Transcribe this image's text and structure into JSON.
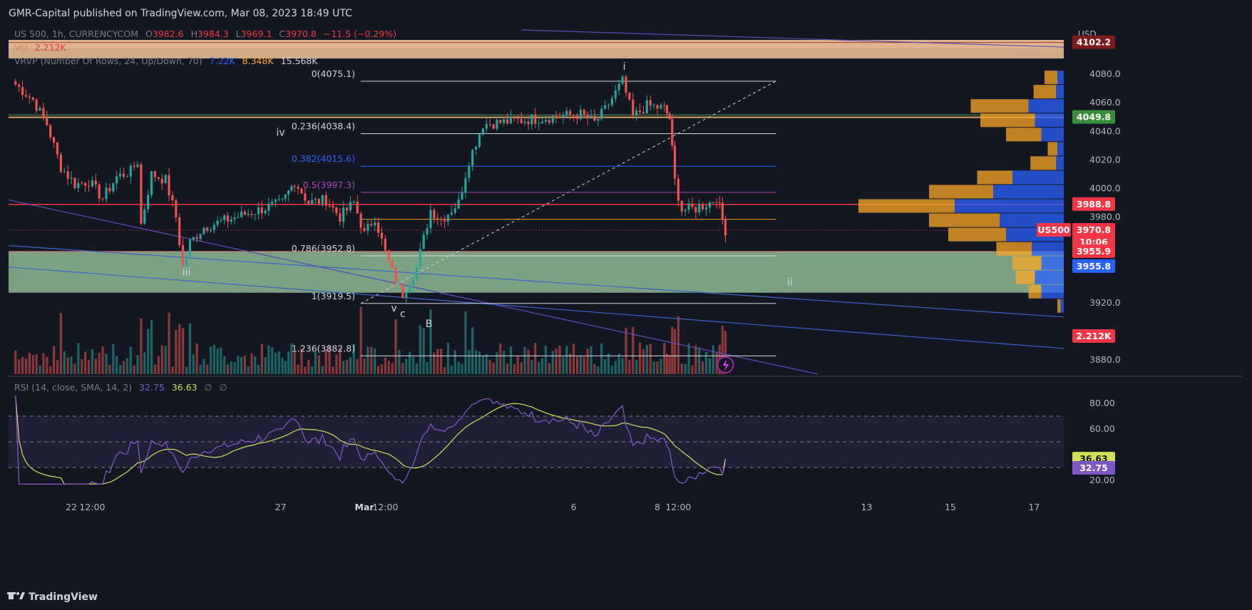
{
  "header": {
    "published": "GMR-Capital published on TradingView.com, Mar 08, 2023 18:49 UTC"
  },
  "footer": {
    "brand": "TradingView"
  },
  "legend": {
    "symbol": "US 500, 1h, CURRENCYCOM",
    "o_label": "O",
    "o": "3982.6",
    "h_label": "H",
    "h": "3984.3",
    "l_label": "L",
    "l": "3969.1",
    "c_label": "C",
    "c": "3970.8",
    "change": "−11.5 (−0.29%)",
    "vol_label": "Vol",
    "vol": "2.212K",
    "vrvp_label": "VRVP (Number Of Rows, 24, Up/Down, 70)",
    "vrvp_up": "7.22K",
    "vrvp_down": "8.348K",
    "vrvp_total": "15.568K",
    "rsi_label": "RSI (14, close, SMA, 14, 2)",
    "rsi_value": "32.75",
    "rsi_sma": "36.63",
    "rsi_extra1": "∅",
    "rsi_extra2": "∅"
  },
  "axis": {
    "currency": "USD",
    "price_ticks": [
      "4080.0",
      "4060.0",
      "4040.0",
      "4020.0",
      "4000.0",
      "3980.0",
      "3920.0",
      "3880.0"
    ],
    "rsi_ticks": [
      "80.00",
      "60.00",
      "20.00"
    ],
    "time_ticks": [
      "22",
      "12:00",
      "27",
      "Mar",
      "12:00",
      "6",
      "8",
      "12:00",
      "13",
      "15",
      "17"
    ]
  },
  "price_labels": {
    "top_zone": "4102.2",
    "green": "4049.8",
    "red_line": "3988.8",
    "symbol_tag": "US500",
    "last": "3970.8",
    "countdown": "10:06",
    "zone_red": "3955.9",
    "zone_blue": "3955.8",
    "volume": "2.212K",
    "rsi_sma": "36.63",
    "rsi": "32.75"
  },
  "fib": [
    {
      "label": "0(4075.1)",
      "price": 4075.1,
      "color": "#d1d4dc"
    },
    {
      "label": "0.236(4038.4)",
      "price": 4038.4,
      "color": "#d1d4dc"
    },
    {
      "label": "0.382(4015.6)",
      "price": 4015.6,
      "color": "#2962ff"
    },
    {
      "label": "0.5(3997.3)",
      "price": 3997.3,
      "color": "#ab47bc"
    },
    {
      "label": "",
      "price": 3978.4,
      "color": "#f9a825"
    },
    {
      "label": "0.786(3952.8)",
      "price": 3952.8,
      "color": "#d1d4dc"
    },
    {
      "label": "1(3919.5)",
      "price": 3919.5,
      "color": "#d1d4dc"
    },
    {
      "label": "1.236(3882.8)",
      "price": 3882.8,
      "color": "#d1d4dc"
    }
  ],
  "waves": [
    {
      "label": "i",
      "date": "Mar 7 05:00",
      "price": 4083
    },
    {
      "label": "iv",
      "date": "Feb 27 00:00",
      "price": 4037
    },
    {
      "label": "iii",
      "date": "Feb 24 18:00",
      "price": 3939
    },
    {
      "label": "v",
      "date": "Mar 1 17:00",
      "price": 3914
    },
    {
      "label": "c",
      "date": "Mar 1 22:00",
      "price": 3910
    },
    {
      "label": "B",
      "date": "Mar 2 13:00",
      "price": 3903
    },
    {
      "label": "ii",
      "date": "Mar 11 04:00",
      "price": 3932
    }
  ],
  "colors": {
    "up": "#26a69a",
    "down": "#ef5350",
    "bg": "#131722",
    "grid": "#1e222d",
    "rsi": "#7e57c2",
    "rsi_sma": "#d4e157",
    "vp_up": "#2962ff",
    "vp_down": "#f9a825",
    "zone_orange": "#f7c59a",
    "zone_green": "#a5d6a7",
    "red_level": "#f23645"
  },
  "chart_data": [
    {
      "type": "candlestick",
      "title": "US 500, 1h, CURRENCYCOM",
      "x_range": [
        "Feb 20 12:00",
        "Mar 17 17:00"
      ],
      "ylim": [
        3870,
        4110
      ],
      "close_path": [
        {
          "date": "Feb 20 14:00",
          "close": 4075
        },
        {
          "date": "Feb 21 02:00",
          "close": 4062
        },
        {
          "date": "Feb 21 10:00",
          "close": 4045
        },
        {
          "date": "Feb 21 18:00",
          "close": 4015
        },
        {
          "date": "Feb 22 02:00",
          "close": 4003
        },
        {
          "date": "Feb 22 10:00",
          "close": 4005
        },
        {
          "date": "Feb 22 18:00",
          "close": 3993
        },
        {
          "date": "Feb 23 02:00",
          "close": 4008
        },
        {
          "date": "Feb 23 10:00",
          "close": 4012
        },
        {
          "date": "Feb 23 14:00",
          "close": 4019
        },
        {
          "date": "Feb 23 16:00",
          "close": 3975
        },
        {
          "date": "Feb 23 22:00",
          "close": 4010
        },
        {
          "date": "Feb 24 06:00",
          "close": 4006
        },
        {
          "date": "Feb 24 12:00",
          "close": 3980
        },
        {
          "date": "Feb 24 16:00",
          "close": 3945
        },
        {
          "date": "Feb 24 20:00",
          "close": 3962
        },
        {
          "date": "Feb 25 04:00",
          "close": 3973
        },
        {
          "date": "Feb 27 01:00",
          "close": 3990
        },
        {
          "date": "Feb 27 08:00",
          "close": 4005
        },
        {
          "date": "Feb 27 16:00",
          "close": 3990
        },
        {
          "date": "Feb 28 02:00",
          "close": 3992
        },
        {
          "date": "Feb 28 10:00",
          "close": 3980
        },
        {
          "date": "Feb 28 18:00",
          "close": 3990
        },
        {
          "date": "Mar 1 00:00",
          "close": 3968
        },
        {
          "date": "Mar 1 06:00",
          "close": 3980
        },
        {
          "date": "Mar 1 12:00",
          "close": 3955
        },
        {
          "date": "Mar 1 18:00",
          "close": 3935
        },
        {
          "date": "Mar 1 22:00",
          "close": 3926
        },
        {
          "date": "Mar 2 06:00",
          "close": 3945
        },
        {
          "date": "Mar 2 14:00",
          "close": 3985
        },
        {
          "date": "Mar 2 20:00",
          "close": 3978
        },
        {
          "date": "Mar 3 06:00",
          "close": 3990
        },
        {
          "date": "Mar 3 12:00",
          "close": 4020
        },
        {
          "date": "Mar 3 20:00",
          "close": 4045
        },
        {
          "date": "Mar 6 04:00",
          "close": 4052
        },
        {
          "date": "Mar 6 12:00",
          "close": 4046
        },
        {
          "date": "Mar 6 18:00",
          "close": 4055
        },
        {
          "date": "Mar 7 04:00",
          "close": 4075
        },
        {
          "date": "Mar 7 10:00",
          "close": 4050
        },
        {
          "date": "Mar 7 18:00",
          "close": 4058
        },
        {
          "date": "Mar 8 04:00",
          "close": 4056
        },
        {
          "date": "Mar 8 07:00",
          "close": 4049
        },
        {
          "date": "Mar 8 10:00",
          "close": 4005
        },
        {
          "date": "Mar 8 14:00",
          "close": 3985
        },
        {
          "date": "Mar 8 22:00",
          "close": 3986
        },
        {
          "date": "Mar 9 06:00",
          "close": 3990
        },
        {
          "date": "Mar 9 10:00",
          "close": 3994
        },
        {
          "date": "Mar 9 15:00",
          "close": 3970.8
        }
      ]
    },
    {
      "type": "bar",
      "title": "Vol",
      "last_value": "2.212K"
    },
    {
      "type": "bar",
      "title": "VRVP (Number Of Rows, 24, Up/Down, 70)",
      "rows": [
        {
          "price": 4077.5,
          "up": 0.2,
          "down": 0.1
        },
        {
          "price": 4067.5,
          "up": 0.35,
          "down": 0.12
        },
        {
          "price": 4057.5,
          "up": 0.9,
          "down": 0.55
        },
        {
          "price": 4047.5,
          "up": 0.85,
          "down": 0.45
        },
        {
          "price": 4037.5,
          "up": 0.55,
          "down": 0.35
        },
        {
          "price": 4027.5,
          "up": 0.15,
          "down": 0.1
        },
        {
          "price": 4017.5,
          "up": 0.4,
          "down": 0.12
        },
        {
          "price": 4007.5,
          "up": 0.55,
          "down": 0.8
        },
        {
          "price": 3997.5,
          "up": 1.0,
          "down": 1.1
        },
        {
          "price": 3987.5,
          "up": 1.5,
          "down": 1.7
        },
        {
          "price": 3977.5,
          "up": 1.1,
          "down": 1.0
        },
        {
          "price": 3967.5,
          "up": 0.9,
          "down": 0.9
        },
        {
          "price": 3957.5,
          "up": 0.55,
          "down": 0.5
        },
        {
          "price": 3947.5,
          "up": 0.45,
          "down": 0.35
        },
        {
          "price": 3937.5,
          "up": 0.3,
          "down": 0.45
        },
        {
          "price": 3927.5,
          "up": 0.2,
          "down": 0.35
        },
        {
          "price": 3917.5,
          "up": 0.05,
          "down": 0.05
        }
      ]
    },
    {
      "type": "line",
      "title": "RSI (14, close, SMA, 14, 2)",
      "ylim": [
        10,
        90
      ],
      "series": [
        {
          "name": "RSI",
          "last": 32.75
        },
        {
          "name": "SMA",
          "last": 36.63
        }
      ]
    }
  ]
}
